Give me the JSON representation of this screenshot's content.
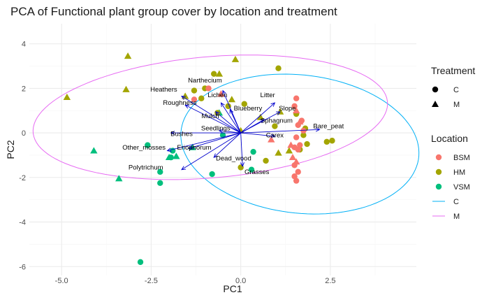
{
  "chart_data": {
    "type": "scatter",
    "title": "PCA of Functional plant group cover by location and treatment",
    "xlabel": "PC1",
    "ylabel": "PC2",
    "xlim": [
      -5.9,
      4.9
    ],
    "ylim": [
      -6.4,
      4.9
    ],
    "x_ticks": [
      -5.0,
      -2.5,
      0.0,
      2.5
    ],
    "x_tick_labels": [
      "-5.0",
      "-2.5",
      "0.0",
      "2.5"
    ],
    "y_ticks": [
      -6,
      -4,
      -2,
      0,
      2,
      4
    ],
    "y_tick_labels": [
      "-6",
      "-4",
      "-2",
      "0",
      "2",
      "4"
    ],
    "grid": true,
    "colors": {
      "BSM": "#F8766D",
      "HM": "#A3A500",
      "VSM": "#00BF7D",
      "C": "#00B0F6",
      "M": "#E76BF3",
      "arrows": "#0000CD",
      "grid_major": "#ebebeb",
      "grid_minor": "#f5f5f5"
    },
    "legends": {
      "treatment": {
        "title": "Treatment",
        "items": [
          {
            "label": "C",
            "shape": "circle"
          },
          {
            "label": "M",
            "shape": "triangle"
          }
        ]
      },
      "location": {
        "title": "Location",
        "items": [
          {
            "label": "BSM",
            "kind": "point"
          },
          {
            "label": "HM",
            "kind": "point"
          },
          {
            "label": "VSM",
            "kind": "point"
          },
          {
            "label": "C",
            "kind": "line"
          },
          {
            "label": "M",
            "kind": "line"
          }
        ]
      }
    },
    "ellipses": [
      {
        "name": "C",
        "cx": 1.65,
        "cy": -0.5,
        "rx": 3.0,
        "ry": 3.45,
        "angle_deg": 57
      },
      {
        "name": "M",
        "cx": -0.85,
        "cy": 0.7,
        "rx": 5.0,
        "ry": 2.7,
        "angle_deg": 10
      }
    ],
    "points": [
      {
        "x": -2.8,
        "y": -5.8,
        "location": "VSM",
        "treatment": "C"
      },
      {
        "x": -2.25,
        "y": -1.75,
        "location": "VSM",
        "treatment": "C"
      },
      {
        "x": -2.25,
        "y": -2.25,
        "location": "VSM",
        "treatment": "C"
      },
      {
        "x": -2.6,
        "y": -0.55,
        "location": "VSM",
        "treatment": "C"
      },
      {
        "x": -1.95,
        "y": -1.1,
        "location": "VSM",
        "treatment": "C"
      },
      {
        "x": -1.9,
        "y": -0.8,
        "location": "VSM",
        "treatment": "C"
      },
      {
        "x": -0.8,
        "y": -1.85,
        "location": "VSM",
        "treatment": "C"
      },
      {
        "x": 0.3,
        "y": -1.65,
        "location": "VSM",
        "treatment": "C"
      },
      {
        "x": 0.35,
        "y": -0.85,
        "location": "VSM",
        "treatment": "C"
      },
      {
        "x": -0.5,
        "y": -0.1,
        "location": "VSM",
        "treatment": "C"
      },
      {
        "x": -4.1,
        "y": -0.8,
        "location": "VSM",
        "treatment": "M"
      },
      {
        "x": -3.4,
        "y": -2.05,
        "location": "VSM",
        "treatment": "M"
      },
      {
        "x": -2.0,
        "y": -1.1,
        "location": "VSM",
        "treatment": "M"
      },
      {
        "x": -1.8,
        "y": -1.05,
        "location": "VSM",
        "treatment": "M"
      },
      {
        "x": -1.35,
        "y": -0.65,
        "location": "VSM",
        "treatment": "M"
      },
      {
        "x": -0.6,
        "y": 0.9,
        "location": "VSM",
        "treatment": "M"
      },
      {
        "x": -0.75,
        "y": 2.65,
        "location": "HM",
        "treatment": "C"
      },
      {
        "x": -1.0,
        "y": 2.0,
        "location": "HM",
        "treatment": "C"
      },
      {
        "x": -1.3,
        "y": 1.9,
        "location": "HM",
        "treatment": "C"
      },
      {
        "x": -1.1,
        "y": 1.55,
        "location": "HM",
        "treatment": "C"
      },
      {
        "x": -0.35,
        "y": 1.2,
        "location": "HM",
        "treatment": "C"
      },
      {
        "x": -0.65,
        "y": 0.9,
        "location": "HM",
        "treatment": "C"
      },
      {
        "x": 0.1,
        "y": 1.3,
        "location": "HM",
        "treatment": "C"
      },
      {
        "x": 0.95,
        "y": 0.3,
        "location": "HM",
        "treatment": "C"
      },
      {
        "x": 1.05,
        "y": 2.9,
        "location": "HM",
        "treatment": "C"
      },
      {
        "x": 0.7,
        "y": -1.25,
        "location": "HM",
        "treatment": "C"
      },
      {
        "x": 0.0,
        "y": -1.55,
        "location": "HM",
        "treatment": "C"
      },
      {
        "x": 1.65,
        "y": -0.75,
        "location": "HM",
        "treatment": "C"
      },
      {
        "x": 1.75,
        "y": -0.1,
        "location": "HM",
        "treatment": "C"
      },
      {
        "x": 1.8,
        "y": 0.2,
        "location": "HM",
        "treatment": "C"
      },
      {
        "x": 1.85,
        "y": -0.5,
        "location": "HM",
        "treatment": "C"
      },
      {
        "x": 2.4,
        "y": -0.4,
        "location": "HM",
        "treatment": "C"
      },
      {
        "x": 2.55,
        "y": -0.35,
        "location": "HM",
        "treatment": "C"
      },
      {
        "x": 1.55,
        "y": 0.85,
        "location": "HM",
        "treatment": "C"
      },
      {
        "x": -4.85,
        "y": 1.6,
        "location": "HM",
        "treatment": "M"
      },
      {
        "x": -3.15,
        "y": 3.45,
        "location": "HM",
        "treatment": "M"
      },
      {
        "x": -3.2,
        "y": 1.95,
        "location": "HM",
        "treatment": "M"
      },
      {
        "x": -0.15,
        "y": 3.3,
        "location": "HM",
        "treatment": "M"
      },
      {
        "x": -0.6,
        "y": 2.65,
        "location": "HM",
        "treatment": "M"
      },
      {
        "x": -1.55,
        "y": 1.65,
        "location": "HM",
        "treatment": "M"
      },
      {
        "x": -0.25,
        "y": 1.5,
        "location": "HM",
        "treatment": "M"
      },
      {
        "x": 0.0,
        "y": 0.1,
        "location": "HM",
        "treatment": "M"
      },
      {
        "x": 0.55,
        "y": 0.7,
        "location": "HM",
        "treatment": "M"
      },
      {
        "x": 1.1,
        "y": 0.95,
        "location": "HM",
        "treatment": "M"
      },
      {
        "x": 1.05,
        "y": -0.9,
        "location": "HM",
        "treatment": "M"
      },
      {
        "x": 1.35,
        "y": -0.8,
        "location": "HM",
        "treatment": "M"
      },
      {
        "x": -0.9,
        "y": 2.0,
        "location": "BSM",
        "treatment": "C"
      },
      {
        "x": -1.3,
        "y": 1.5,
        "location": "BSM",
        "treatment": "C"
      },
      {
        "x": 1.55,
        "y": 1.55,
        "location": "BSM",
        "treatment": "C"
      },
      {
        "x": 1.5,
        "y": 1.2,
        "location": "BSM",
        "treatment": "C"
      },
      {
        "x": 1.7,
        "y": 0.55,
        "location": "BSM",
        "treatment": "C"
      },
      {
        "x": 1.6,
        "y": 0.35,
        "location": "BSM",
        "treatment": "C"
      },
      {
        "x": 1.75,
        "y": 0.1,
        "location": "BSM",
        "treatment": "C"
      },
      {
        "x": 1.55,
        "y": -0.2,
        "location": "BSM",
        "treatment": "C"
      },
      {
        "x": 1.65,
        "y": -0.55,
        "location": "BSM",
        "treatment": "C"
      },
      {
        "x": 1.5,
        "y": -0.65,
        "location": "BSM",
        "treatment": "C"
      },
      {
        "x": 1.6,
        "y": -0.75,
        "location": "BSM",
        "treatment": "C"
      },
      {
        "x": 1.5,
        "y": -1.45,
        "location": "BSM",
        "treatment": "C"
      },
      {
        "x": 1.6,
        "y": -1.75,
        "location": "BSM",
        "treatment": "C"
      },
      {
        "x": 1.5,
        "y": -1.95,
        "location": "BSM",
        "treatment": "C"
      },
      {
        "x": 1.55,
        "y": -2.15,
        "location": "BSM",
        "treatment": "C"
      },
      {
        "x": -0.55,
        "y": 1.75,
        "location": "BSM",
        "treatment": "M"
      },
      {
        "x": 1.55,
        "y": 1.0,
        "location": "BSM",
        "treatment": "M"
      },
      {
        "x": 1.65,
        "y": 0.5,
        "location": "BSM",
        "treatment": "M"
      },
      {
        "x": 0.85,
        "y": -0.3,
        "location": "BSM",
        "treatment": "M"
      },
      {
        "x": 1.4,
        "y": -0.55,
        "location": "BSM",
        "treatment": "M"
      },
      {
        "x": 1.45,
        "y": -1.1,
        "location": "BSM",
        "treatment": "M"
      },
      {
        "x": 1.55,
        "y": -1.3,
        "location": "BSM",
        "treatment": "M"
      }
    ],
    "variables": [
      {
        "name": "Narthecium",
        "x": -0.5,
        "y": 1.9,
        "lx": -1.0,
        "ly": 2.35
      },
      {
        "name": "Heathers",
        "x": -1.65,
        "y": 1.65,
        "lx": -2.15,
        "ly": 1.95
      },
      {
        "name": "Lichen",
        "x": -0.55,
        "y": 1.35,
        "lx": -0.65,
        "ly": 1.7
      },
      {
        "name": "Roughness",
        "x": -1.55,
        "y": 1.25,
        "lx": -1.7,
        "ly": 1.35
      },
      {
        "name": "Litter",
        "x": 0.95,
        "y": 1.35,
        "lx": 0.75,
        "ly": 1.7
      },
      {
        "name": "Blueberry",
        "x": -0.3,
        "y": 1.05,
        "lx": 0.2,
        "ly": 1.1
      },
      {
        "name": "Slope",
        "x": 1.1,
        "y": 0.95,
        "lx": 1.3,
        "ly": 1.1
      },
      {
        "name": "Mulch",
        "x": -0.7,
        "y": 0.95,
        "lx": -0.85,
        "ly": 0.75
      },
      {
        "name": "Sphagnum",
        "x": 0.65,
        "y": 0.6,
        "lx": 1.0,
        "ly": 0.55
      },
      {
        "name": "Seedlings",
        "x": -0.6,
        "y": 0.1,
        "lx": -0.7,
        "ly": 0.2
      },
      {
        "name": "Bushes",
        "x": -1.95,
        "y": 0.0,
        "lx": -1.65,
        "ly": -0.05
      },
      {
        "name": "Bare_peat",
        "x": 2.2,
        "y": 0.15,
        "lx": 2.45,
        "ly": 0.3
      },
      {
        "name": "Carex",
        "x": 0.95,
        "y": -0.15,
        "lx": 0.95,
        "ly": -0.1
      },
      {
        "name": "Other_mosses",
        "x": -2.05,
        "y": -0.8,
        "lx": -2.7,
        "ly": -0.65
      },
      {
        "name": "Eriophorum",
        "x": -1.45,
        "y": -0.7,
        "lx": -1.3,
        "ly": -0.65
      },
      {
        "name": "Dead_wood",
        "x": -0.75,
        "y": -1.1,
        "lx": -0.2,
        "ly": -1.15
      },
      {
        "name": "Polytrichum",
        "x": -1.65,
        "y": -1.65,
        "lx": -2.65,
        "ly": -1.55
      },
      {
        "name": "Grasses",
        "x": 0.05,
        "y": -1.5,
        "lx": 0.45,
        "ly": -1.75
      }
    ]
  }
}
